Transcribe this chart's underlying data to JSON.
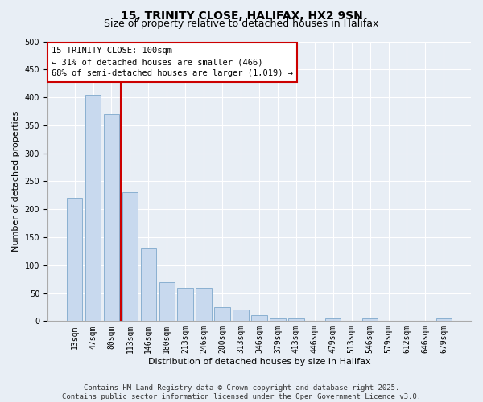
{
  "title": "15, TRINITY CLOSE, HALIFAX, HX2 9SN",
  "subtitle": "Size of property relative to detached houses in Halifax",
  "xlabel": "Distribution of detached houses by size in Halifax",
  "ylabel": "Number of detached properties",
  "categories": [
    "13sqm",
    "47sqm",
    "80sqm",
    "113sqm",
    "146sqm",
    "180sqm",
    "213sqm",
    "246sqm",
    "280sqm",
    "313sqm",
    "346sqm",
    "379sqm",
    "413sqm",
    "446sqm",
    "479sqm",
    "513sqm",
    "546sqm",
    "579sqm",
    "612sqm",
    "646sqm",
    "679sqm"
  ],
  "values": [
    220,
    405,
    370,
    230,
    130,
    70,
    60,
    60,
    25,
    20,
    10,
    5,
    5,
    0,
    5,
    0,
    5,
    0,
    0,
    0,
    5
  ],
  "bar_color": "#c8d9ee",
  "bar_edge_color": "#8ab0d0",
  "vline_x_index": 2,
  "vline_color": "#cc0000",
  "annotation_text": "15 TRINITY CLOSE: 100sqm\n← 31% of detached houses are smaller (466)\n68% of semi-detached houses are larger (1,019) →",
  "annotation_box_facecolor": "#ffffff",
  "annotation_box_edgecolor": "#cc0000",
  "footer_line1": "Contains HM Land Registry data © Crown copyright and database right 2025.",
  "footer_line2": "Contains public sector information licensed under the Open Government Licence v3.0.",
  "ylim": [
    0,
    500
  ],
  "background_color": "#e8eef5",
  "grid_color": "#ffffff",
  "title_fontsize": 10,
  "subtitle_fontsize": 9,
  "axis_label_fontsize": 8,
  "tick_fontsize": 7,
  "annotation_fontsize": 7.5,
  "footer_fontsize": 6.5
}
